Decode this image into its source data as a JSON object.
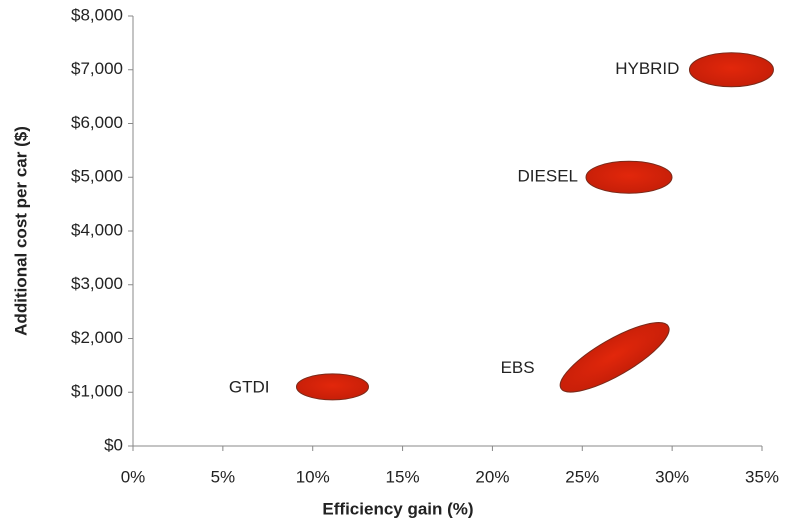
{
  "chart_data": {
    "type": "scatter",
    "xlabel": "Efficiency gain (%)",
    "ylabel": "Additional cost per car ($)",
    "labels": [
      "GTDI",
      "EBS",
      "DIESEL",
      "HYBRID"
    ],
    "x": [
      11.1,
      26.8,
      27.6,
      33.3
    ],
    "values": [
      1100,
      1650,
      5000,
      7000
    ],
    "color": "#e2270b",
    "xlim": [
      0,
      35
    ],
    "xticks": [
      {
        "value": 0,
        "label": "0%"
      },
      {
        "value": 5,
        "label": "5%"
      },
      {
        "value": 10,
        "label": "10%"
      },
      {
        "value": 15,
        "label": "15%"
      },
      {
        "value": 20,
        "label": "20%"
      },
      {
        "value": 25,
        "label": "25%"
      },
      {
        "value": 30,
        "label": "30%"
      },
      {
        "value": 35,
        "label": "35%"
      }
    ],
    "ylim": [
      0,
      8000
    ],
    "yticks": [
      {
        "value": 0,
        "label": "$0"
      },
      {
        "value": 1000,
        "label": "$1,000"
      },
      {
        "value": 2000,
        "label": "$2,000"
      },
      {
        "value": 3000,
        "label": "$3,000"
      },
      {
        "value": 4000,
        "label": "$4,000"
      },
      {
        "value": 5000,
        "label": "$5,000"
      },
      {
        "value": 6000,
        "label": "$6,000"
      },
      {
        "value": 7000,
        "label": "$7,000"
      },
      {
        "value": 8000,
        "label": "$8,000"
      }
    ],
    "grid": false
  }
}
